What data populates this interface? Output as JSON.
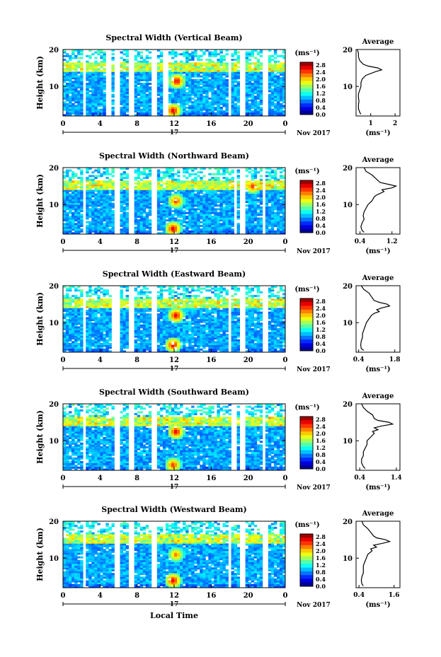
{
  "chart_data": [
    {
      "type": "heatmap",
      "title": "Spectral Width (Vertical Beam)",
      "ylabel": "Height (km)",
      "ylim": [
        2,
        20
      ],
      "yticks": [
        10,
        20
      ],
      "x": [
        0,
        4,
        8,
        12,
        16,
        20,
        0
      ],
      "day_label": "17",
      "date_label": "Nov 2017",
      "colorbar": {
        "unit": "(ms⁻¹)",
        "ticks": [
          "2.8",
          "2.4",
          "2.0",
          "1.6",
          "1.2",
          "0.8",
          "0.4",
          "0.0"
        ]
      },
      "gaps_hours": [
        2.3,
        5.0,
        5.8,
        7.5,
        9.8,
        11.0,
        18.0,
        19.3,
        21.8
      ],
      "hotspots": [
        {
          "hour": 12.3,
          "height_km": 11.5,
          "value": 2.8
        },
        {
          "hour": 11.9,
          "height_km": 3.5,
          "value": 2.8
        }
      ],
      "profile": {
        "title": "Average",
        "xlabel": "(ms⁻¹)",
        "xticks": [
          "1",
          "2"
        ],
        "xlim": [
          0.4,
          2.2
        ],
        "ylim": [
          2,
          20
        ],
        "yticks": [
          10,
          20
        ],
        "height_km": [
          2.5,
          3,
          4,
          5,
          6,
          7,
          8,
          9,
          10,
          11,
          12,
          13,
          14,
          14.5,
          15,
          15.5,
          16,
          17,
          18,
          19,
          20
        ],
        "values": [
          0.6,
          0.55,
          0.5,
          0.5,
          0.52,
          0.5,
          0.5,
          0.55,
          0.6,
          0.6,
          0.65,
          0.8,
          1.2,
          1.45,
          1.3,
          0.9,
          0.7,
          0.55,
          0.5,
          0.5,
          0.45
        ]
      }
    },
    {
      "type": "heatmap",
      "title": "Spectral Width (Northward Beam)",
      "ylabel": "Height (km)",
      "ylim": [
        2,
        20
      ],
      "yticks": [
        10,
        20
      ],
      "x": [
        0,
        4,
        8,
        12,
        16,
        20,
        0
      ],
      "day_label": "17",
      "date_label": "Nov 2017",
      "colorbar": {
        "unit": "(ms⁻¹)",
        "ticks": [
          "2.8",
          "2.4",
          "2.0",
          "1.6",
          "1.2",
          "0.8",
          "0.4",
          "0.0"
        ]
      },
      "gaps_hours": [
        2.3,
        5.8,
        7.5,
        9.8,
        18.6,
        19.3,
        21.7
      ],
      "hotspots": [
        {
          "hour": 12.2,
          "height_km": 11.0,
          "value": 2.6
        },
        {
          "hour": 11.9,
          "height_km": 3.5,
          "value": 2.8
        },
        {
          "hour": 20.5,
          "height_km": 15.0,
          "value": 2.6
        }
      ],
      "profile": {
        "title": "Average",
        "xlabel": "(ms⁻¹)",
        "xticks": [
          "0.4",
          "1.2"
        ],
        "xlim": [
          0.3,
          1.4
        ],
        "ylim": [
          2,
          20
        ],
        "yticks": [
          10,
          20
        ],
        "height_km": [
          2.5,
          3,
          4,
          5,
          6,
          7,
          8,
          9,
          10,
          11,
          12,
          12.5,
          13,
          13.5,
          14,
          14.5,
          15,
          15.5,
          16,
          17,
          18,
          19,
          20
        ],
        "values": [
          0.5,
          0.45,
          0.42,
          0.45,
          0.5,
          0.48,
          0.5,
          0.55,
          0.6,
          0.7,
          0.75,
          0.8,
          0.9,
          1.0,
          0.95,
          1.2,
          1.3,
          1.1,
          0.9,
          0.8,
          0.7,
          0.55,
          0.5
        ]
      }
    },
    {
      "type": "heatmap",
      "title": "Spectral Width (Eastward Beam)",
      "ylabel": "Height (km)",
      "ylim": [
        2,
        20
      ],
      "yticks": [
        10,
        20
      ],
      "x": [
        0,
        4,
        8,
        12,
        16,
        20,
        0
      ],
      "day_label": "17",
      "date_label": "Nov 2017",
      "colorbar": {
        "unit": "(ms⁻¹)",
        "ticks": [
          "2.8",
          "2.4",
          "2.0",
          "1.6",
          "1.2",
          "0.8",
          "0.4",
          "0.0"
        ]
      },
      "gaps_hours": [
        2.3,
        5.5,
        5.9,
        7.5,
        9.8,
        18.0,
        19.4,
        21.8
      ],
      "hotspots": [
        {
          "hour": 12.2,
          "height_km": 12.0,
          "value": 2.8
        },
        {
          "hour": 11.9,
          "height_km": 4.0,
          "value": 2.8
        }
      ],
      "profile": {
        "title": "Average",
        "xlabel": "(ms⁻¹)",
        "xticks": [
          "0.4",
          "1.8"
        ],
        "xlim": [
          0.3,
          2.0
        ],
        "ylim": [
          2,
          20
        ],
        "yticks": [
          10,
          20
        ],
        "height_km": [
          2.5,
          3,
          4,
          5,
          6,
          7,
          8,
          9,
          10,
          11,
          12,
          12.5,
          13,
          13.5,
          14,
          14.5,
          15,
          15.5,
          16,
          17,
          18,
          19,
          20
        ],
        "values": [
          0.6,
          0.5,
          0.48,
          0.5,
          0.55,
          0.55,
          0.6,
          0.65,
          0.7,
          0.8,
          0.9,
          1.0,
          1.2,
          1.1,
          1.3,
          1.6,
          1.5,
          1.2,
          1.0,
          0.9,
          0.8,
          0.6,
          0.5
        ]
      }
    },
    {
      "type": "heatmap",
      "title": "Spectral Width (Southward Beam)",
      "ylabel": "Height (km)",
      "ylim": [
        2,
        20
      ],
      "yticks": [
        10,
        20
      ],
      "x": [
        0,
        4,
        8,
        12,
        16,
        20,
        0
      ],
      "day_label": "17",
      "date_label": "Nov 2017",
      "colorbar": {
        "unit": "(ms⁻¹)",
        "ticks": [
          "2.8",
          "2.4",
          "2.0",
          "1.6",
          "1.2",
          "0.8",
          "0.4",
          "0.0"
        ]
      },
      "gaps_hours": [
        2.3,
        5.8,
        7.5,
        9.8,
        18.5,
        19.4,
        21.7
      ],
      "hotspots": [
        {
          "hour": 12.2,
          "height_km": 12.5,
          "value": 2.8
        },
        {
          "hour": 11.9,
          "height_km": 3.5,
          "value": 2.6
        }
      ],
      "profile": {
        "title": "Average",
        "xlabel": "(ms⁻¹)",
        "xticks": [
          "0.4",
          "1.4"
        ],
        "xlim": [
          0.3,
          1.5
        ],
        "ylim": [
          2,
          20
        ],
        "yticks": [
          10,
          20
        ],
        "height_km": [
          2.5,
          3,
          4,
          5,
          6,
          7,
          8,
          9,
          10,
          11,
          12,
          12.5,
          13,
          13.5,
          14,
          14.5,
          15,
          15.5,
          16,
          17,
          18,
          19,
          20
        ],
        "values": [
          0.55,
          0.5,
          0.45,
          0.45,
          0.5,
          0.5,
          0.55,
          0.6,
          0.6,
          0.7,
          0.8,
          0.75,
          0.9,
          0.8,
          1.0,
          1.3,
          1.2,
          0.9,
          0.8,
          0.75,
          0.6,
          0.5,
          0.45
        ]
      }
    },
    {
      "type": "heatmap",
      "title": "Spectral Width (Westward Beam)",
      "ylabel": "Height (km)",
      "ylim": [
        2,
        20
      ],
      "yticks": [
        10,
        20
      ],
      "x": [
        0,
        4,
        8,
        12,
        16,
        20,
        0
      ],
      "day_label": "17",
      "date_label": "Nov 2017",
      "xlabel": "Local Time",
      "colorbar": {
        "unit": "(ms⁻¹)",
        "ticks": [
          "2.8",
          "2.4",
          "2.0",
          "1.6",
          "1.2",
          "0.8",
          "0.4",
          "0.0"
        ]
      },
      "gaps_hours": [
        2.3,
        5.9,
        7.5,
        9.8,
        18.0,
        19.5,
        21.8
      ],
      "hotspots": [
        {
          "hour": 12.2,
          "height_km": 11.0,
          "value": 2.4
        },
        {
          "hour": 11.9,
          "height_km": 4.0,
          "value": 2.8
        }
      ],
      "profile": {
        "title": "Average",
        "xlabel": "(ms⁻¹)",
        "xticks": [
          "0.4",
          "1.6"
        ],
        "xlim": [
          0.3,
          1.8
        ],
        "ylim": [
          2,
          20
        ],
        "yticks": [
          10,
          20
        ],
        "height_km": [
          2.5,
          3,
          4,
          5,
          6,
          7,
          8,
          9,
          10,
          11,
          12,
          12.5,
          13,
          13.5,
          14,
          14.5,
          15,
          15.5,
          16,
          17,
          18,
          19,
          20
        ],
        "values": [
          0.55,
          0.5,
          0.48,
          0.5,
          0.55,
          0.55,
          0.55,
          0.6,
          0.65,
          0.7,
          0.85,
          0.8,
          1.0,
          0.9,
          1.2,
          1.45,
          1.3,
          1.0,
          0.9,
          0.8,
          0.7,
          0.55,
          0.5
        ]
      }
    }
  ]
}
